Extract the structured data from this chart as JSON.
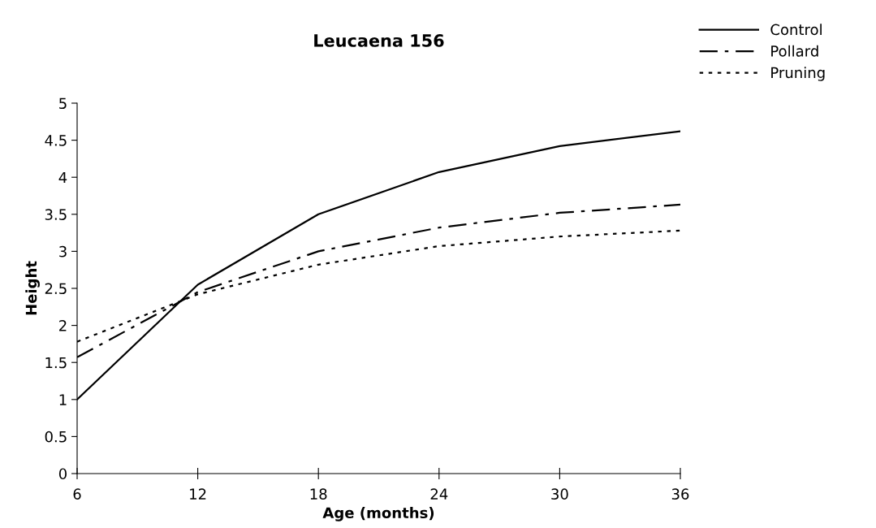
{
  "chart_data": {
    "type": "line",
    "title": "Leucaena 156",
    "xlabel": "Age (months)",
    "ylabel": "Height",
    "x": [
      6,
      12,
      18,
      24,
      30,
      36
    ],
    "series": [
      {
        "name": "Control",
        "color": "#000000",
        "line_style": "solid",
        "values": [
          1.0,
          2.55,
          3.5,
          4.07,
          4.42,
          4.62
        ]
      },
      {
        "name": "Pollard",
        "color": "#000000",
        "line_style": "dashdot",
        "values": [
          1.57,
          2.45,
          3.0,
          3.32,
          3.52,
          3.63
        ]
      },
      {
        "name": "Pruning",
        "color": "#000000",
        "line_style": "dotted",
        "values": [
          1.78,
          2.42,
          2.82,
          3.07,
          3.2,
          3.28
        ]
      }
    ],
    "xlim": [
      6,
      36
    ],
    "xticks": [
      6,
      12,
      18,
      24,
      30,
      36
    ],
    "ylim": [
      0,
      5
    ],
    "yticks": [
      0,
      0.5,
      1,
      1.5,
      2,
      2.5,
      3,
      3.5,
      4,
      4.5,
      5
    ],
    "grid": false,
    "legend": "top right",
    "marker": "none"
  }
}
